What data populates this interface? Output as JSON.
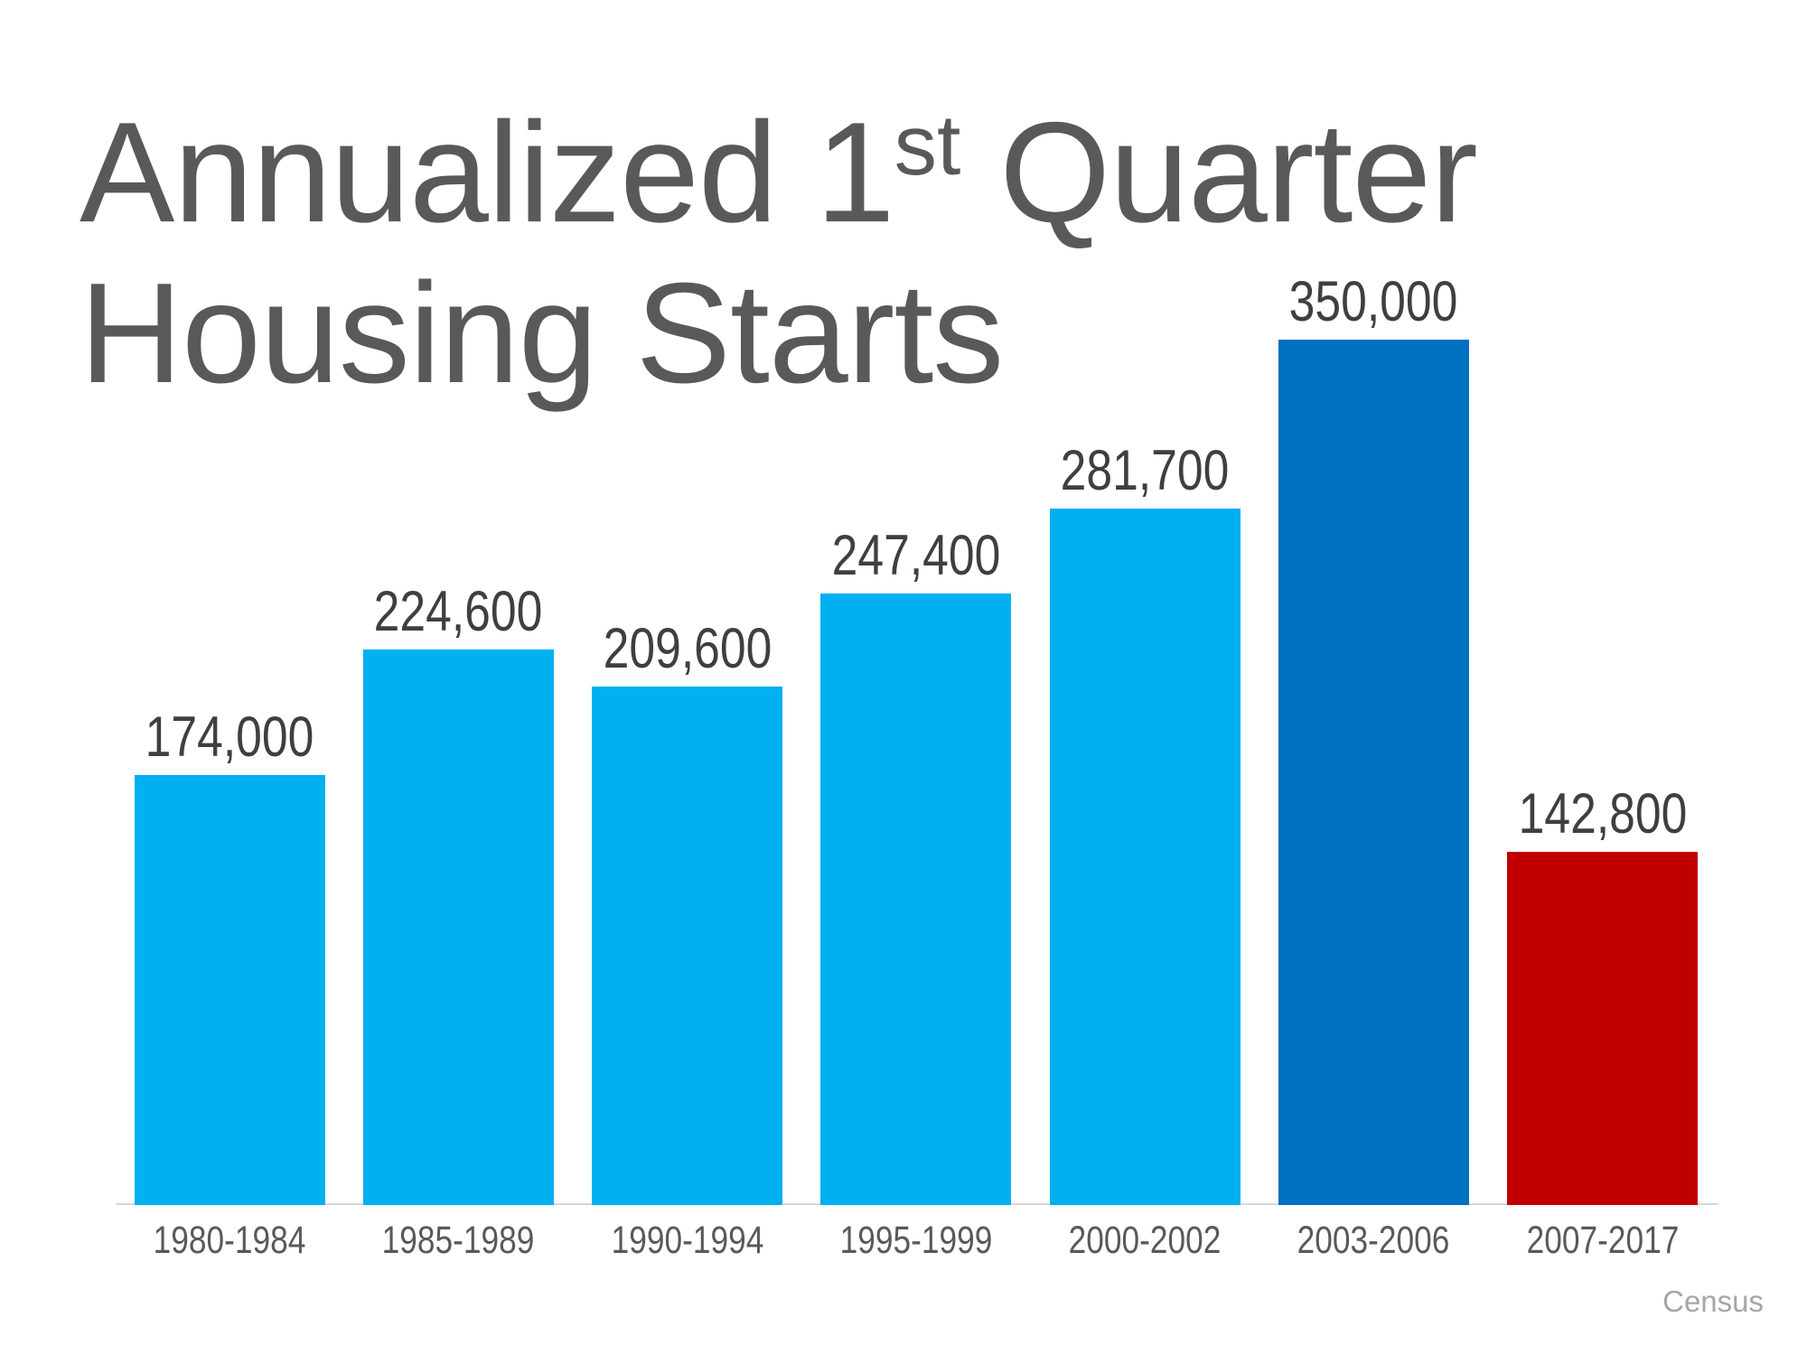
{
  "title": {
    "line1_pre": "Annualized 1",
    "line1_sup": "st",
    "line1_post": " Quarter",
    "line2": "Housing Starts"
  },
  "source": "Census",
  "colors": {
    "bar_default": "#00B0F0",
    "bar_peak": "#0070C0",
    "bar_crash": "#C00000",
    "title_text": "#595959",
    "value_label_text": "#3F3F3F",
    "axis_label_text": "#595959",
    "axis_line": "#D9D9D9",
    "source_text": "#A6A6A6"
  },
  "chart_data": {
    "type": "bar",
    "title": "Annualized 1st Quarter Housing Starts",
    "categories": [
      "1980-1984",
      "1985-1989",
      "1990-1994",
      "1995-1999",
      "2000-2002",
      "2003-2006",
      "2007-2017"
    ],
    "values": [
      174000,
      224600,
      209600,
      247400,
      281700,
      350000,
      142800
    ],
    "value_labels": [
      "174,000",
      "224,600",
      "209,600",
      "247,400",
      "281,700",
      "350,000",
      "142,800"
    ],
    "bar_colors": [
      "#00B0F0",
      "#00B0F0",
      "#00B0F0",
      "#00B0F0",
      "#00B0F0",
      "#0070C0",
      "#C00000"
    ],
    "xlabel": "",
    "ylabel": "",
    "ylim": [
      0,
      350000
    ],
    "grid": false,
    "legend": false,
    "data_labels": "above bars",
    "source": "Census"
  }
}
